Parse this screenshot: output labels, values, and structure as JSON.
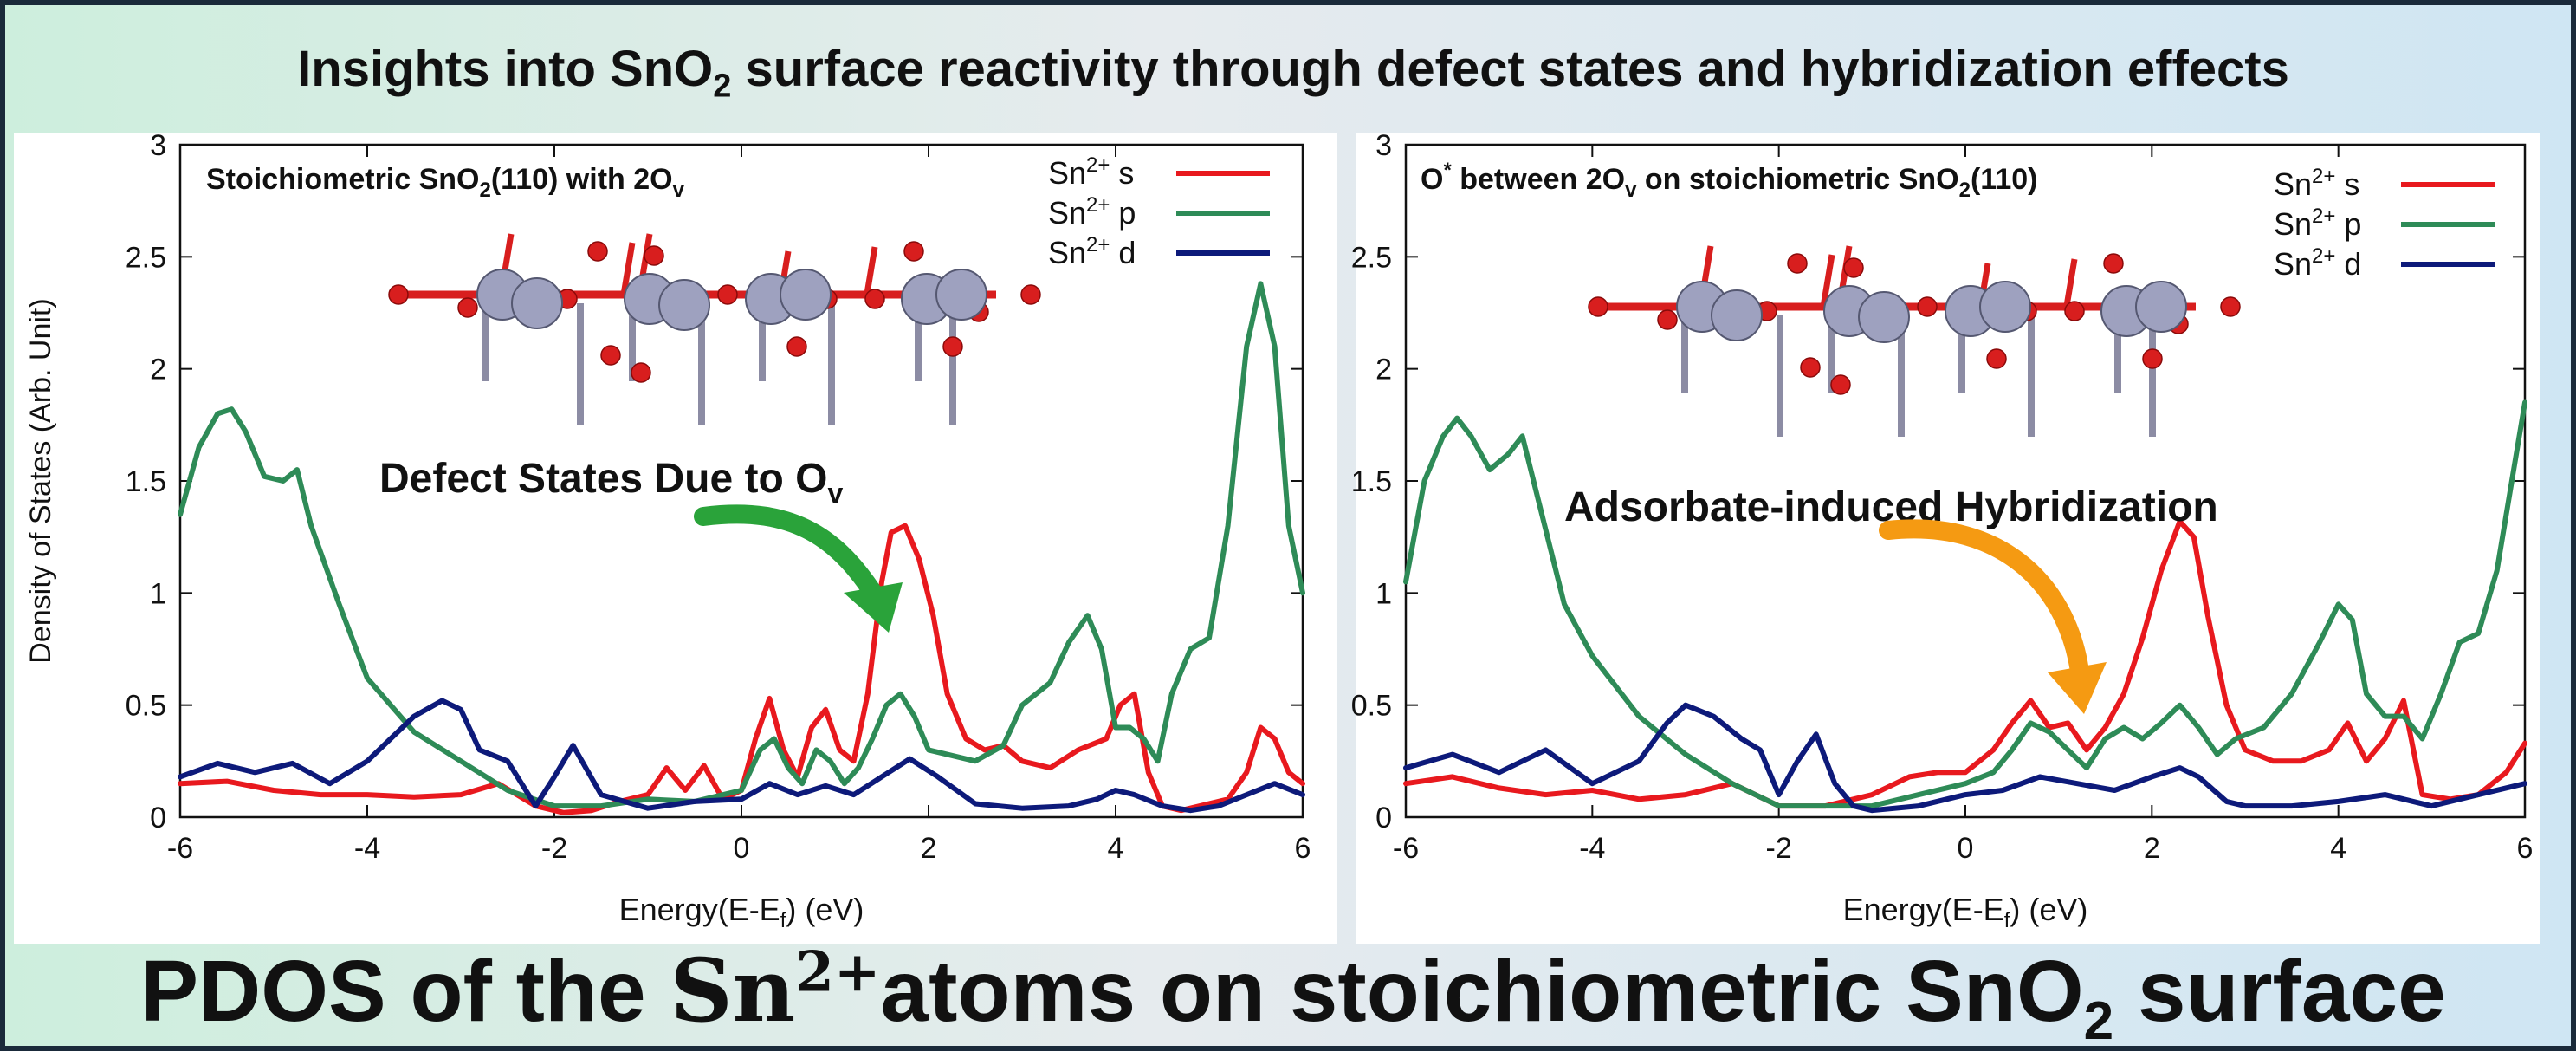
{
  "header": {
    "title_pre": "Insights into SnO",
    "title_sub": "2",
    "title_post": " surface reactivity through defect states and hybridization effects"
  },
  "footer": {
    "pre": "PDOS of the ",
    "sn": "Sn",
    "sup": "2+",
    "mid": "atoms on stoichiometric SnO",
    "sub": "2",
    "post": " surface"
  },
  "colors": {
    "s": "#e8191e",
    "p": "#2e8b57",
    "d": "#0d1a7a",
    "arrow_green": "#2aa33a",
    "arrow_orange": "#f59a12"
  },
  "chart_data": [
    {
      "type": "line",
      "title": "Stoichiometric SnO2(110) with 2Ov",
      "title_parts": {
        "a": "Stoichiometric SnO",
        "b": "2",
        "c": "(110) with 2O",
        "d": "v"
      },
      "xlabel": "Energy(E-Ef) (eV)",
      "xlabel_parts": {
        "a": "Energy(E-E",
        "b": "f",
        "c": ") (eV)"
      },
      "ylabel": "Density of States (Arb. Unit)",
      "xlim": [
        -6,
        6
      ],
      "ylim": [
        0,
        3
      ],
      "xticks": [
        "-6",
        "-4",
        "-2",
        "0",
        "2",
        "4",
        "6"
      ],
      "yticks": [
        "0",
        "0.5",
        "1",
        "1.5",
        "2",
        "2.5",
        "3"
      ],
      "legend_position": "top-right",
      "annotation": {
        "a": "Defect States Due to O",
        "b": "v"
      },
      "series": [
        {
          "name": "Sn2+ s",
          "key": "s",
          "x": [
            -6,
            -5.5,
            -5,
            -4.5,
            -4,
            -3.5,
            -3,
            -2.6,
            -2.2,
            -1.9,
            -1.6,
            -1.3,
            -1,
            -0.8,
            -0.6,
            -0.4,
            -0.2,
            0,
            0.15,
            0.3,
            0.45,
            0.6,
            0.75,
            0.9,
            1.05,
            1.2,
            1.35,
            1.5,
            1.6,
            1.75,
            1.9,
            2.05,
            2.2,
            2.4,
            2.6,
            2.8,
            3,
            3.3,
            3.6,
            3.9,
            4.05,
            4.2,
            4.35,
            4.5,
            4.7,
            4.9,
            5.2,
            5.4,
            5.55,
            5.7,
            5.85,
            6
          ],
          "y": [
            0.15,
            0.16,
            0.12,
            0.1,
            0.1,
            0.09,
            0.1,
            0.15,
            0.05,
            0.02,
            0.03,
            0.07,
            0.1,
            0.22,
            0.12,
            0.23,
            0.08,
            0.12,
            0.35,
            0.53,
            0.3,
            0.18,
            0.4,
            0.48,
            0.3,
            0.25,
            0.55,
            1.05,
            1.27,
            1.3,
            1.15,
            0.9,
            0.55,
            0.35,
            0.3,
            0.32,
            0.25,
            0.22,
            0.3,
            0.35,
            0.5,
            0.55,
            0.2,
            0.05,
            0.03,
            0.05,
            0.08,
            0.2,
            0.4,
            0.35,
            0.2,
            0.15
          ]
        },
        {
          "name": "Sn2+ p",
          "key": "p",
          "x": [
            -6,
            -5.8,
            -5.6,
            -5.45,
            -5.3,
            -5.1,
            -4.9,
            -4.75,
            -4.6,
            -4.3,
            -4,
            -3.5,
            -3,
            -2.5,
            -2,
            -1.5,
            -1,
            -0.5,
            0,
            0.2,
            0.35,
            0.5,
            0.65,
            0.8,
            0.95,
            1.1,
            1.25,
            1.4,
            1.55,
            1.7,
            1.85,
            2,
            2.2,
            2.5,
            2.8,
            3,
            3.3,
            3.5,
            3.7,
            3.85,
            4,
            4.15,
            4.3,
            4.45,
            4.6,
            4.8,
            5,
            5.2,
            5.4,
            5.55,
            5.7,
            5.85,
            6
          ],
          "y": [
            1.35,
            1.65,
            1.8,
            1.82,
            1.72,
            1.52,
            1.5,
            1.55,
            1.3,
            0.95,
            0.62,
            0.38,
            0.25,
            0.12,
            0.05,
            0.05,
            0.08,
            0.07,
            0.12,
            0.3,
            0.35,
            0.22,
            0.15,
            0.3,
            0.25,
            0.15,
            0.22,
            0.35,
            0.5,
            0.55,
            0.45,
            0.3,
            0.28,
            0.25,
            0.32,
            0.5,
            0.6,
            0.78,
            0.9,
            0.75,
            0.4,
            0.4,
            0.35,
            0.25,
            0.55,
            0.75,
            0.8,
            1.3,
            2.1,
            2.38,
            2.1,
            1.3,
            1.0
          ]
        },
        {
          "name": "Sn2+ d",
          "key": "d",
          "x": [
            -6,
            -5.6,
            -5.2,
            -4.8,
            -4.4,
            -4,
            -3.5,
            -3.2,
            -3,
            -2.8,
            -2.5,
            -2.2,
            -2,
            -1.8,
            -1.5,
            -1,
            -0.5,
            0,
            0.3,
            0.6,
            0.9,
            1.2,
            1.5,
            1.8,
            2.1,
            2.5,
            3,
            3.5,
            3.8,
            4,
            4.2,
            4.5,
            4.8,
            5.1,
            5.4,
            5.7,
            6
          ],
          "y": [
            0.18,
            0.24,
            0.2,
            0.24,
            0.15,
            0.25,
            0.45,
            0.52,
            0.48,
            0.3,
            0.25,
            0.05,
            0.18,
            0.32,
            0.1,
            0.04,
            0.07,
            0.08,
            0.15,
            0.1,
            0.14,
            0.1,
            0.18,
            0.26,
            0.18,
            0.06,
            0.04,
            0.05,
            0.08,
            0.12,
            0.1,
            0.05,
            0.03,
            0.05,
            0.1,
            0.15,
            0.1
          ]
        }
      ]
    },
    {
      "type": "line",
      "title": "O* between 2Ov on stoichiometric SnO2(110)",
      "title_parts": {
        "a": "O",
        "sup": "*",
        "b": " between 2O",
        "c": "v",
        "d": " on stoichiometric SnO",
        "e": "2",
        "f": "(110)"
      },
      "xlabel": "Energy(E-Ef) (eV)",
      "xlabel_parts": {
        "a": "Energy(E-E",
        "b": "f",
        "c": ") (eV)"
      },
      "ylabel": "",
      "xlim": [
        -6,
        6
      ],
      "ylim": [
        0,
        3
      ],
      "xticks": [
        "-6",
        "-4",
        "-2",
        "0",
        "2",
        "4",
        "6"
      ],
      "yticks": [
        "0",
        "0.5",
        "1",
        "1.5",
        "2",
        "2.5",
        "3"
      ],
      "legend_position": "top-right",
      "annotation": {
        "a": "Adsorbate-induced Hybridization",
        "b": ""
      },
      "series": [
        {
          "name": "Sn2+ s",
          "key": "s",
          "x": [
            -6,
            -5.5,
            -5,
            -4.5,
            -4,
            -3.5,
            -3,
            -2.5,
            -2,
            -1.5,
            -1,
            -0.6,
            -0.3,
            0,
            0.3,
            0.5,
            0.7,
            0.9,
            1.1,
            1.3,
            1.5,
            1.7,
            1.9,
            2.1,
            2.3,
            2.45,
            2.6,
            2.8,
            3,
            3.3,
            3.6,
            3.9,
            4.1,
            4.3,
            4.5,
            4.7,
            4.9,
            5.2,
            5.5,
            5.8,
            6
          ],
          "y": [
            0.15,
            0.18,
            0.13,
            0.1,
            0.12,
            0.08,
            0.1,
            0.15,
            0.05,
            0.05,
            0.1,
            0.18,
            0.2,
            0.2,
            0.3,
            0.42,
            0.52,
            0.4,
            0.42,
            0.3,
            0.4,
            0.55,
            0.8,
            1.1,
            1.32,
            1.25,
            0.9,
            0.5,
            0.3,
            0.25,
            0.25,
            0.3,
            0.42,
            0.25,
            0.35,
            0.52,
            0.1,
            0.08,
            0.1,
            0.2,
            0.33
          ]
        },
        {
          "name": "Sn2+ p",
          "key": "p",
          "x": [
            -6,
            -5.8,
            -5.6,
            -5.45,
            -5.3,
            -5.1,
            -4.9,
            -4.75,
            -4.6,
            -4.3,
            -4,
            -3.5,
            -3,
            -2.5,
            -2,
            -1.5,
            -1,
            -0.5,
            0,
            0.3,
            0.5,
            0.7,
            0.9,
            1.1,
            1.3,
            1.5,
            1.7,
            1.9,
            2.1,
            2.3,
            2.5,
            2.7,
            2.9,
            3.2,
            3.5,
            3.8,
            4,
            4.15,
            4.3,
            4.5,
            4.7,
            4.9,
            5.1,
            5.3,
            5.5,
            5.7,
            5.9,
            6
          ],
          "y": [
            1.05,
            1.5,
            1.7,
            1.78,
            1.7,
            1.55,
            1.62,
            1.7,
            1.45,
            0.95,
            0.72,
            0.45,
            0.28,
            0.15,
            0.05,
            0.05,
            0.05,
            0.1,
            0.15,
            0.2,
            0.3,
            0.42,
            0.38,
            0.3,
            0.22,
            0.35,
            0.4,
            0.35,
            0.42,
            0.5,
            0.4,
            0.28,
            0.35,
            0.4,
            0.55,
            0.78,
            0.95,
            0.88,
            0.55,
            0.45,
            0.45,
            0.35,
            0.55,
            0.78,
            0.82,
            1.1,
            1.6,
            1.85
          ]
        },
        {
          "name": "Sn2+ d",
          "key": "d",
          "x": [
            -6,
            -5.5,
            -5,
            -4.5,
            -4,
            -3.5,
            -3.2,
            -3,
            -2.7,
            -2.4,
            -2.2,
            -2,
            -1.8,
            -1.6,
            -1.4,
            -1.2,
            -1,
            -0.5,
            0,
            0.4,
            0.8,
            1.2,
            1.6,
            2,
            2.3,
            2.5,
            2.8,
            3,
            3.5,
            4,
            4.5,
            5,
            5.5,
            6
          ],
          "y": [
            0.22,
            0.28,
            0.2,
            0.3,
            0.15,
            0.25,
            0.42,
            0.5,
            0.45,
            0.35,
            0.3,
            0.1,
            0.25,
            0.37,
            0.15,
            0.05,
            0.03,
            0.05,
            0.1,
            0.12,
            0.18,
            0.15,
            0.12,
            0.18,
            0.22,
            0.18,
            0.07,
            0.05,
            0.05,
            0.07,
            0.1,
            0.05,
            0.1,
            0.15
          ]
        }
      ]
    }
  ]
}
